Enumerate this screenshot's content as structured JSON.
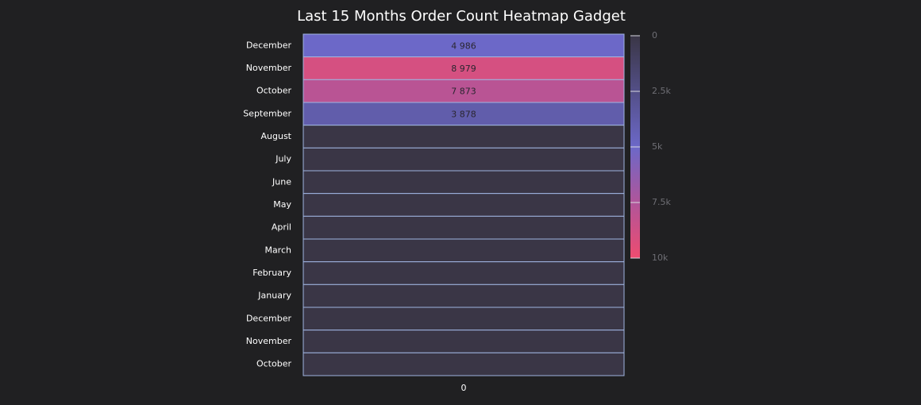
{
  "chart_data": {
    "type": "heatmap",
    "title": "Last 15 Months Order Count Heatmap Gadget",
    "x": [
      "0"
    ],
    "categories": [
      "December",
      "November",
      "October",
      "September",
      "August",
      "July",
      "June",
      "May",
      "April",
      "March",
      "February",
      "January",
      "December",
      "November",
      "October"
    ],
    "values": [
      4986,
      8979,
      7873,
      3878,
      0,
      0,
      0,
      0,
      0,
      0,
      0,
      0,
      0,
      0,
      0
    ],
    "value_labels": [
      "4 986",
      "8 979",
      "7 873",
      "3 878",
      null,
      null,
      null,
      null,
      null,
      null,
      null,
      null,
      null,
      null,
      null
    ],
    "colorlim": [
      0,
      10000
    ],
    "colorticks": [
      0,
      {
        "value": 2500,
        "label": "2.5k"
      },
      {
        "value": 5000,
        "label": "5k"
      },
      {
        "value": 7500,
        "label": "7.5k"
      },
      {
        "value": 10000,
        "label": "10k"
      }
    ],
    "colorscale": [
      [
        0,
        "#3a3646"
      ],
      [
        5000,
        "#6c68c8"
      ],
      [
        7500,
        "#b0559a"
      ],
      [
        10000,
        "#ee4c70"
      ]
    ]
  }
}
